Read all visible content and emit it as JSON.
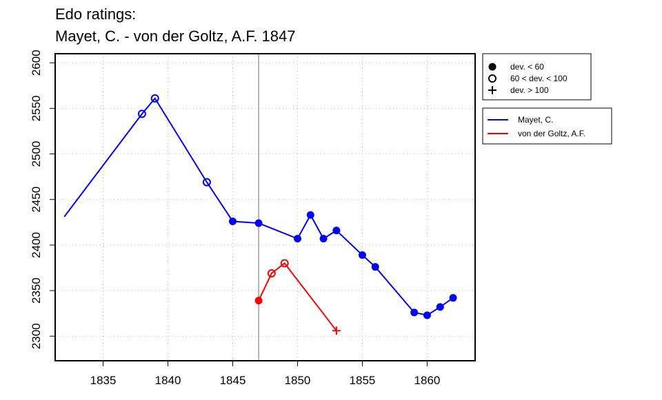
{
  "chart_data": {
    "type": "line",
    "title": "Edo ratings:",
    "subtitle": "Mayet, C. - von der Goltz, A.F. 1847",
    "xlabel": "",
    "ylabel": "",
    "xlim": [
      1831.3,
      1863.7
    ],
    "ylim": [
      2273,
      2610
    ],
    "x_ticks": [
      1835,
      1840,
      1845,
      1850,
      1855,
      1860
    ],
    "y_ticks": [
      2300,
      2350,
      2400,
      2450,
      2500,
      2550,
      2600
    ],
    "grid": true,
    "reference_line_x": 1847,
    "colors": {
      "Mayet": "#0000ff",
      "Goltz": "#ff0000",
      "reference": "#888888",
      "grid": "#bdbdbd"
    },
    "deviation_legend": [
      {
        "label": "dev. < 60",
        "marker": "filled-circle"
      },
      {
        "label": "60 < dev. < 100",
        "marker": "open-circle"
      },
      {
        "label": "dev. > 100",
        "marker": "plus"
      }
    ],
    "series": [
      {
        "name": "Mayet, C.",
        "color": "#0000ff",
        "points": [
          {
            "x": 1832,
            "y": 2431,
            "marker": "none"
          },
          {
            "x": 1838,
            "y": 2544,
            "marker": "open"
          },
          {
            "x": 1839,
            "y": 2561,
            "marker": "open"
          },
          {
            "x": 1843,
            "y": 2469,
            "marker": "open"
          },
          {
            "x": 1845,
            "y": 2426,
            "marker": "filled"
          },
          {
            "x": 1847,
            "y": 2424,
            "marker": "filled"
          },
          {
            "x": 1850,
            "y": 2407,
            "marker": "filled"
          },
          {
            "x": 1851,
            "y": 2433,
            "marker": "filled"
          },
          {
            "x": 1852,
            "y": 2407,
            "marker": "filled"
          },
          {
            "x": 1853,
            "y": 2416,
            "marker": "filled"
          },
          {
            "x": 1855,
            "y": 2389,
            "marker": "filled"
          },
          {
            "x": 1856,
            "y": 2376,
            "marker": "filled"
          },
          {
            "x": 1859,
            "y": 2326,
            "marker": "filled"
          },
          {
            "x": 1860,
            "y": 2323,
            "marker": "filled"
          },
          {
            "x": 1861,
            "y": 2332,
            "marker": "filled"
          },
          {
            "x": 1862,
            "y": 2342,
            "marker": "filled"
          }
        ]
      },
      {
        "name": "von der Goltz, A.F.",
        "color": "#ff0000",
        "points": [
          {
            "x": 1847,
            "y": 2339,
            "marker": "filled"
          },
          {
            "x": 1848,
            "y": 2369,
            "marker": "open"
          },
          {
            "x": 1849,
            "y": 2380,
            "marker": "open"
          },
          {
            "x": 1853,
            "y": 2306,
            "marker": "plus"
          }
        ]
      }
    ]
  }
}
